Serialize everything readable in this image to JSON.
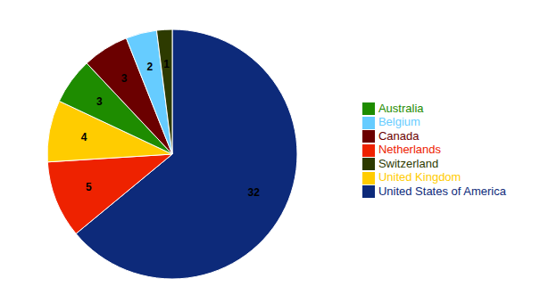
{
  "chart_data": {
    "type": "pie",
    "categories": [
      "United States of America",
      "Netherlands",
      "United Kingdom",
      "Australia",
      "Canada",
      "Belgium",
      "Switzerland"
    ],
    "values": [
      32,
      5,
      4,
      3,
      3,
      2,
      1
    ],
    "colors": [
      "#0d2a7a",
      "#ee2200",
      "#ffcc00",
      "#1e8c00",
      "#6b0000",
      "#66ccff",
      "#2d3a00"
    ],
    "data_labels": true,
    "legend": "right"
  }
}
